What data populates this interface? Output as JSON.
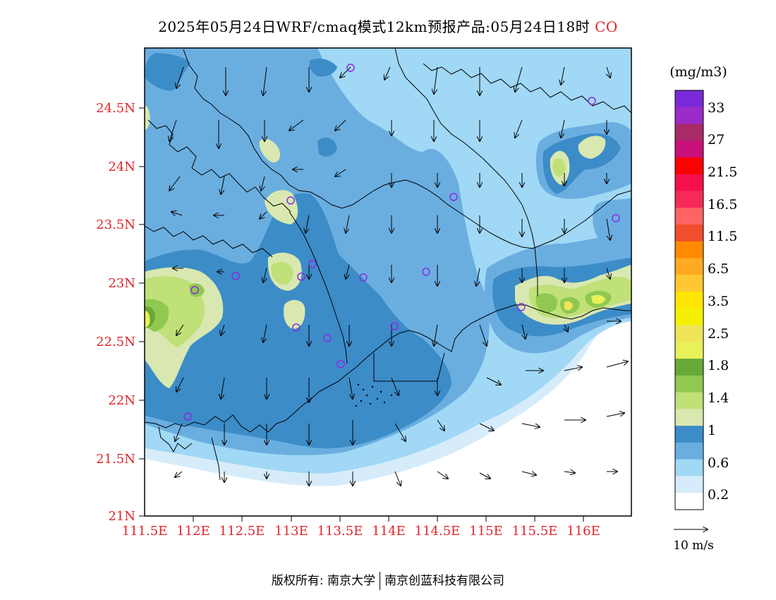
{
  "title": {
    "main": "2025年05月24日WRF/cmaq模式12km预报产品:05月24日18时",
    "species": "CO"
  },
  "axes": {
    "lat_ticks": [
      "24.5N",
      "24N",
      "23.5N",
      "23N",
      "22.5N",
      "22N",
      "21.5N",
      "21N"
    ],
    "lon_ticks": [
      "111.5E",
      "112E",
      "112.5E",
      "113E",
      "113.5E",
      "114E",
      "114.5E",
      "115E",
      "115.5E",
      "116E"
    ]
  },
  "colorbar": {
    "unit": "(mg/m3)",
    "labels": [
      "33",
      "27",
      "21.5",
      "16.5",
      "11.5",
      "6.5",
      "3.5",
      "2.5",
      "1.8",
      "1.4",
      "1",
      "0.6",
      "0.2"
    ],
    "colors_top_to_bottom": [
      "#7b28d8",
      "#9b2cc8",
      "#a82a68",
      "#c8107a",
      "#ff0000",
      "#f5104a",
      "#f52a58",
      "#ff6464",
      "#f04e2c",
      "#ff8a00",
      "#ffaa22",
      "#ffc832",
      "#ffe600",
      "#f5f000",
      "#f0e45a",
      "#e8f05a",
      "#68a838",
      "#90c850",
      "#c0e078",
      "#d8e8b0",
      "#3c8cc8",
      "#6aaee0",
      "#a0d8f5",
      "#d6ecfa",
      "#ffffff"
    ]
  },
  "wind_legend": {
    "label": "10 m/s"
  },
  "footer": {
    "left": "版权所有: 南京大学",
    "right": "南京创蓝科技有限公司"
  }
}
